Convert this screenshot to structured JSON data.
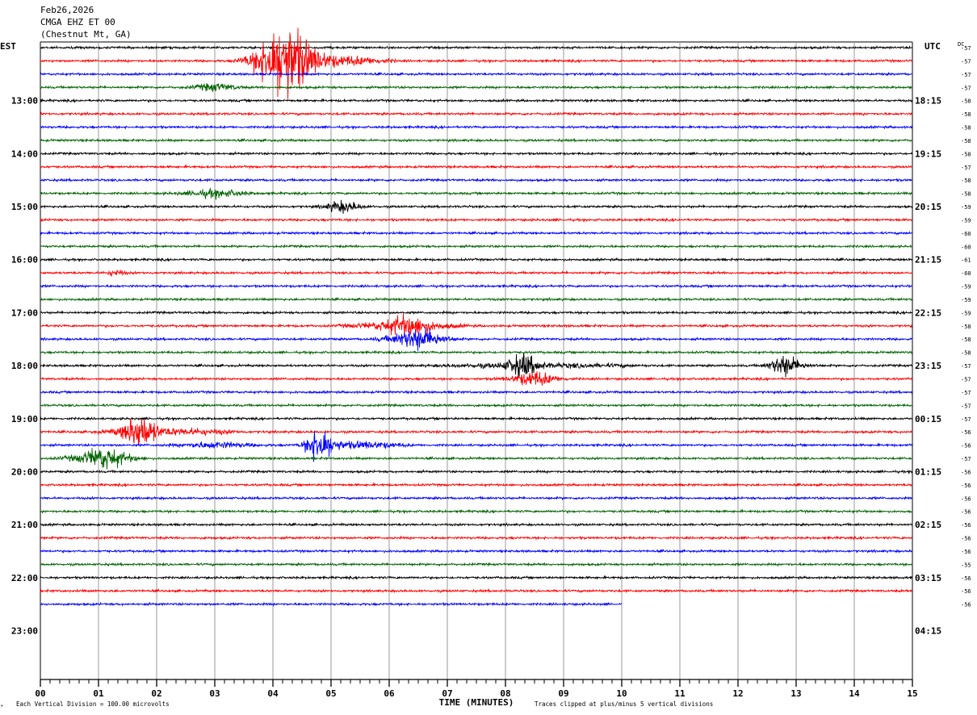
{
  "header": {
    "date": "Feb26,2026",
    "station": "CMGA EHZ ET 00",
    "location": "(Chestnut Mt, GA)"
  },
  "left_tz": "EST",
  "right_tz": "UTC",
  "dc_label": "DC",
  "chart_data": {
    "type": "line",
    "title": "",
    "xlabel": "TIME (MINUTES)",
    "x_ticks": [
      "00",
      "01",
      "02",
      "03",
      "04",
      "05",
      "06",
      "07",
      "08",
      "09",
      "10",
      "11",
      "12",
      "13",
      "14",
      "15"
    ],
    "xlim": [
      0,
      15
    ],
    "left_hour_labels": [
      "13:00",
      "14:00",
      "15:00",
      "16:00",
      "17:00",
      "18:00",
      "19:00",
      "20:00",
      "21:00",
      "22:00",
      "23:00"
    ],
    "right_hour_labels": [
      "18:15",
      "19:15",
      "20:15",
      "21:15",
      "22:15",
      "23:15",
      "00:15",
      "01:15",
      "02:15",
      "03:15",
      "04:15"
    ],
    "rows_total": 44,
    "traces_drawn": 43,
    "last_trace_end_minute": 10,
    "trace_colors": [
      "#000000",
      "#ff0000",
      "#0000ff",
      "#006400"
    ],
    "dc_offsets": [
      -57,
      -57,
      -57,
      -57,
      -58,
      -58,
      -58,
      -58,
      -58,
      -57,
      -58,
      -58,
      -59,
      -59,
      -60,
      -60,
      -61,
      -60,
      -59,
      -59,
      -59,
      -58,
      -58,
      -58,
      -57,
      -57,
      -57,
      -57,
      -57,
      -56,
      -56,
      -57,
      -56,
      -56,
      -56,
      -56,
      -56,
      -56,
      -56,
      -55,
      -56,
      -56,
      -56
    ],
    "events": [
      {
        "row": 1,
        "center_min": 4.2,
        "width_min": 0.6,
        "amp": 5,
        "tail_start": 3.3,
        "tail_end": 6.2,
        "tail_amp": 0.9
      },
      {
        "row": 3,
        "center_min": 3.0,
        "width_min": 0.5,
        "amp": 0.5
      },
      {
        "row": 11,
        "center_min": 3.0,
        "width_min": 0.7,
        "amp": 0.5
      },
      {
        "row": 12,
        "center_min": 5.2,
        "width_min": 0.4,
        "amp": 0.8
      },
      {
        "row": 17,
        "center_min": 1.3,
        "width_min": 0.2,
        "amp": 0.4
      },
      {
        "row": 21,
        "center_min": 6.3,
        "width_min": 0.5,
        "amp": 1.1,
        "tail_start": 5.0,
        "tail_end": 7.5,
        "tail_amp": 0.5
      },
      {
        "row": 22,
        "center_min": 6.5,
        "width_min": 0.5,
        "amp": 1.2,
        "tail_start": 5.6,
        "tail_end": 7.3,
        "tail_amp": 0.4
      },
      {
        "row": 24,
        "center_min": 8.3,
        "width_min": 0.35,
        "amp": 1.4,
        "tail_start": 6.5,
        "tail_end": 10.5,
        "tail_amp": 0.3
      },
      {
        "row": 24,
        "center_min": 12.8,
        "width_min": 0.3,
        "amp": 1.3,
        "tail_start": 12.3,
        "tail_end": 13.5,
        "tail_amp": 0.3
      },
      {
        "row": 25,
        "center_min": 8.5,
        "width_min": 0.4,
        "amp": 0.8,
        "tail_start": 7.7,
        "tail_end": 9.3,
        "tail_amp": 0.3
      },
      {
        "row": 29,
        "center_min": 1.7,
        "width_min": 0.35,
        "amp": 2.2,
        "tail_start": 0.8,
        "tail_end": 3.6,
        "tail_amp": 0.5
      },
      {
        "row": 30,
        "center_min": 4.8,
        "width_min": 0.3,
        "amp": 2.3,
        "tail_start": 4.4,
        "tail_end": 6.5,
        "tail_amp": 0.5
      },
      {
        "row": 30,
        "center_min": 3.0,
        "width_min": 0.8,
        "amp": 0.4
      },
      {
        "row": 31,
        "center_min": 1.1,
        "width_min": 0.5,
        "amp": 1.2,
        "tail_start": 0.2,
        "tail_end": 1.9,
        "tail_amp": 0.4
      }
    ]
  },
  "footer": {
    "scale_note": "Each Vertical Division =  100.00 microvolts",
    "clip_note": "Traces clipped at plus/minus 5 vertical divisions",
    "logo": "⚡"
  }
}
